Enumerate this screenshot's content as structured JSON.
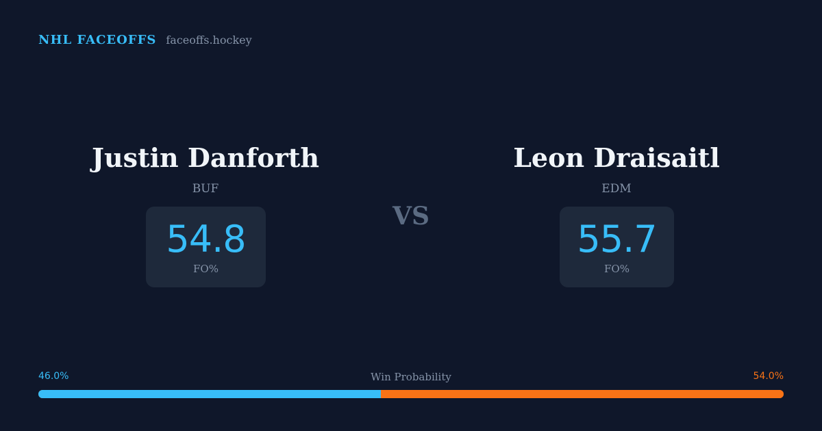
{
  "header": {
    "brand": "NHL FACEOFFS",
    "site": "faceoffs.hockey"
  },
  "matchup": {
    "left": {
      "name": "Justin Danforth",
      "team": "BUF",
      "stat_value": "54.8",
      "stat_label": "FO%"
    },
    "vs_label": "VS",
    "right": {
      "name": "Leon Draisaitl",
      "team": "EDM",
      "stat_value": "55.7",
      "stat_label": "FO%"
    }
  },
  "win_probability": {
    "title": "Win Probability",
    "left_label": "46.0%",
    "right_label": "54.0%",
    "left_value": 46.0,
    "right_value": 54.0,
    "left_color": "#38bdf8",
    "right_color": "#f97316"
  }
}
